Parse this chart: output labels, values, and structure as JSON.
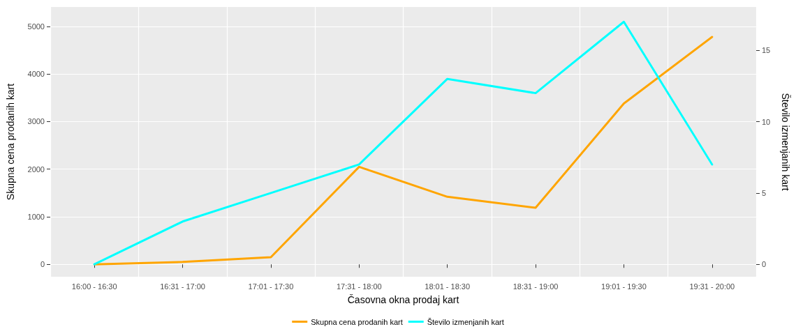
{
  "chart_data": {
    "type": "line",
    "categories": [
      "16:00 - 16:30",
      "16:31 - 17:00",
      "17:01 - 17:30",
      "17:31 - 18:00",
      "18:01 - 18:30",
      "18:31 - 19:00",
      "19:01 - 19:30",
      "19:31 - 20:00"
    ],
    "series": [
      {
        "name": "Skupna cena prodanih kart",
        "color": "#ffa500",
        "values": [
          0,
          50,
          150,
          2050,
          1420,
          1190,
          3380,
          4780
        ]
      },
      {
        "name": "Število izmenjanih kart",
        "color": "#00ffff",
        "axis": "y2",
        "values": [
          0,
          3,
          5,
          7,
          13,
          12,
          17,
          7
        ]
      }
    ],
    "xlabel": "Časovna okna prodaj kart",
    "ylabel": "Skupna cena prodanih kart",
    "y2label": "Število izmenjanih kart",
    "ylim": [
      -260,
      5410
    ],
    "yticks": [
      0,
      1000,
      2000,
      3000,
      4000,
      5000
    ],
    "y2lim": [
      -0.87,
      18.04
    ],
    "y2ticks": [
      0,
      5,
      10,
      15
    ],
    "grid": true,
    "legend": "bottom",
    "marker": "none",
    "line_style": "solid"
  }
}
